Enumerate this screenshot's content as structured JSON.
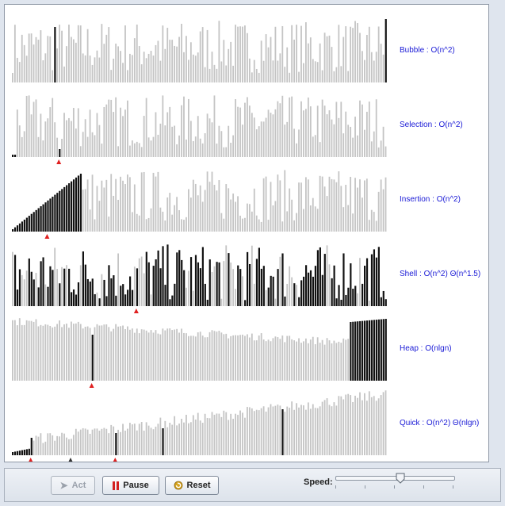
{
  "panels": [
    {
      "label": "Bubble : O(n^2)"
    },
    {
      "label": "Selection : O(n^2)"
    },
    {
      "label": "Insertion : O(n^2)"
    },
    {
      "label": "Shell : O(n^2) Θ(n^1.5)"
    },
    {
      "label": "Heap : O(nlgn)"
    },
    {
      "label": "Quick : O(n^2) Θ(nlgn)"
    }
  ],
  "toolbar": {
    "act_label": "Act",
    "pause_label": "Pause",
    "reset_label": "Reset",
    "speed_label": "Speed:"
  },
  "speed_slider": {
    "value": 0.57
  },
  "colors": {
    "unsorted_bar": "#c4c4c4",
    "sorted_bar": "#111111",
    "label_text": "#1a1ad6",
    "marker": "#e02020"
  },
  "icons": {
    "act": "arrow-right-icon",
    "pause": "pause-icon",
    "reset": "refresh-icon"
  }
}
